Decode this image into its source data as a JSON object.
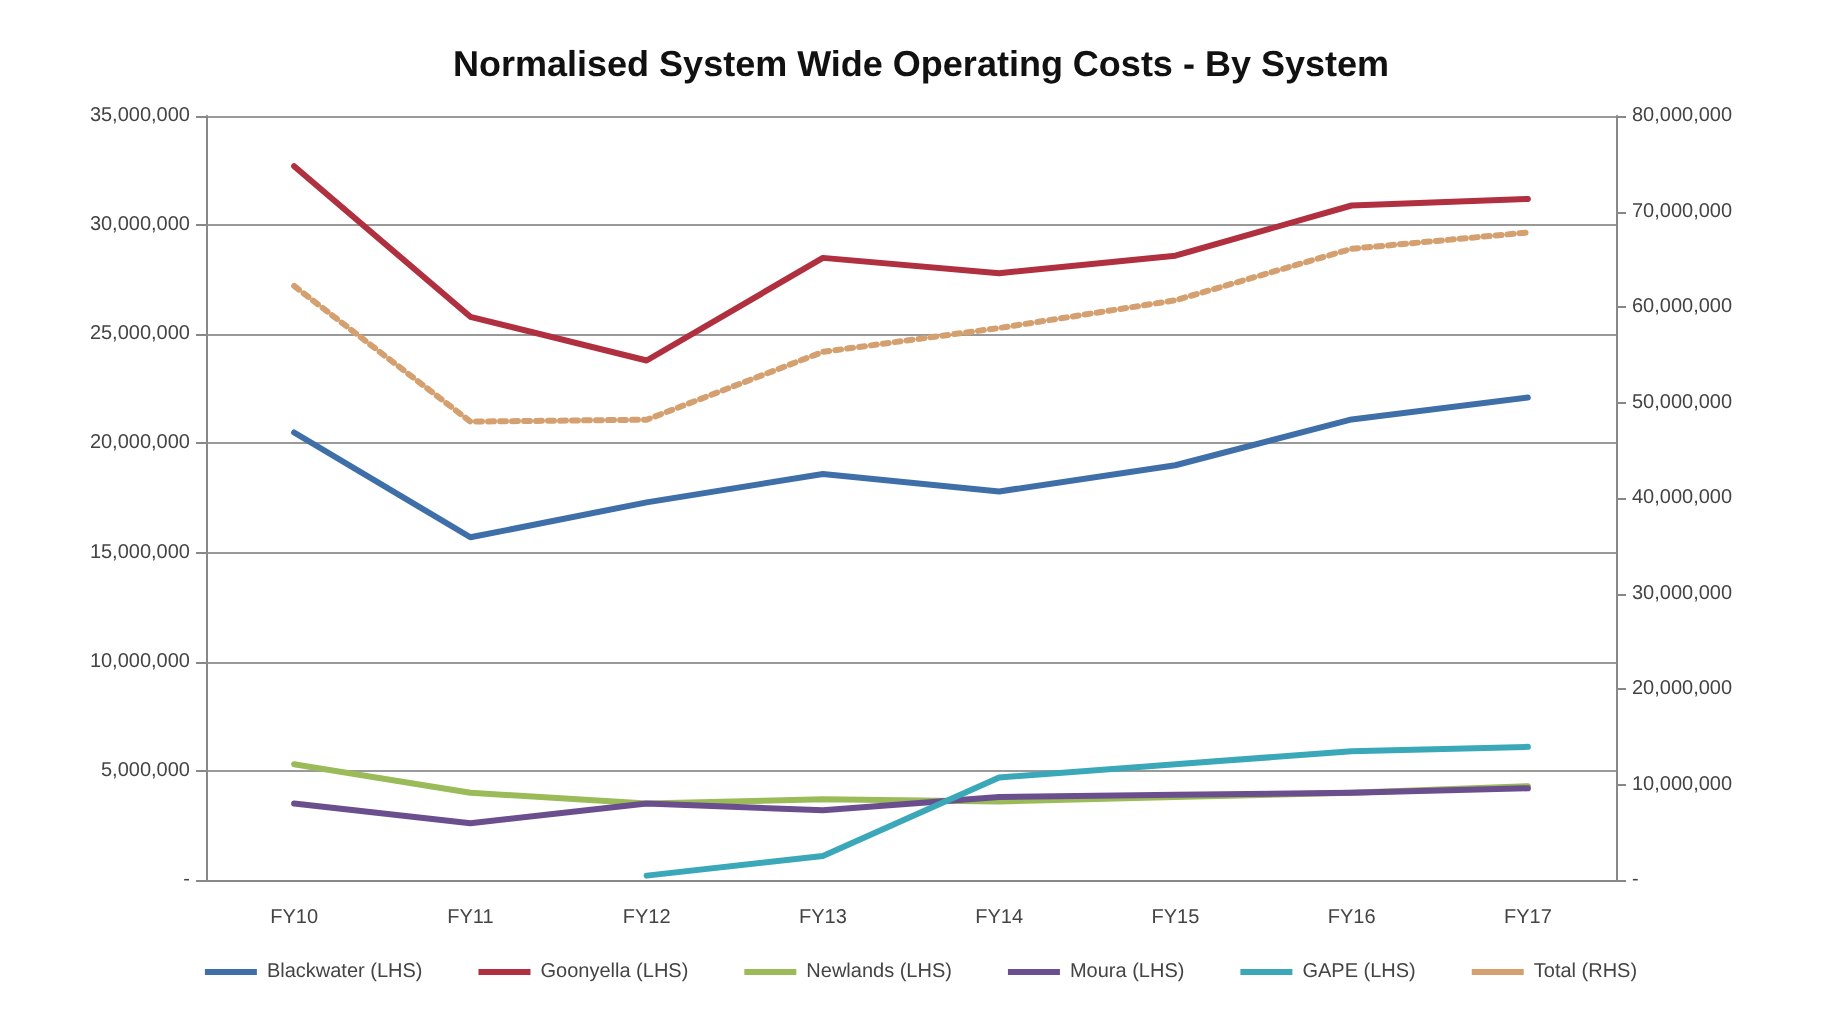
{
  "chart_data": {
    "type": "line",
    "title": "Normalised System Wide Operating Costs - By System",
    "categories": [
      "FY10",
      "FY11",
      "FY12",
      "FY13",
      "FY14",
      "FY15",
      "FY16",
      "FY17"
    ],
    "series": [
      {
        "name": "Blackwater (LHS)",
        "color": "#3f6fa8",
        "values": [
          20500000,
          15700000,
          17300000,
          18600000,
          17800000,
          19000000,
          21100000,
          22100000
        ]
      },
      {
        "name": "Goonyella (LHS)",
        "color": "#b0303f",
        "values": [
          32700000,
          25800000,
          23800000,
          28500000,
          27800000,
          28600000,
          30900000,
          31200000
        ]
      },
      {
        "name": "Newlands (LHS)",
        "color": "#9bbb59",
        "values": [
          5300000,
          4000000,
          3500000,
          3700000,
          3600000,
          3800000,
          4000000,
          4300000
        ]
      },
      {
        "name": "Moura (LHS)",
        "color": "#6b4e8e",
        "values": [
          3500000,
          2600000,
          3500000,
          3200000,
          3800000,
          3900000,
          4000000,
          4200000
        ]
      },
      {
        "name": "GAPE (LHS)",
        "color": "#3aa8b8",
        "values": [
          null,
          null,
          200000,
          1100000,
          4700000,
          5300000,
          5900000,
          6100000
        ]
      },
      {
        "name": "Total (RHS)",
        "color": "#d4a070",
        "axis": "y2",
        "line_style": "dotted",
        "values": [
          62200000,
          48000000,
          48200000,
          55300000,
          57800000,
          60700000,
          66100000,
          67800000
        ]
      }
    ],
    "ylim": [
      0,
      35000000
    ],
    "yticks": [
      {
        "value": 0,
        "label": "-"
      },
      {
        "value": 5000000,
        "label": "5,000,000"
      },
      {
        "value": 10000000,
        "label": "10,000,000"
      },
      {
        "value": 15000000,
        "label": "15,000,000"
      },
      {
        "value": 20000000,
        "label": "20,000,000"
      },
      {
        "value": 25000000,
        "label": "25,000,000"
      },
      {
        "value": 30000000,
        "label": "30,000,000"
      },
      {
        "value": 35000000,
        "label": "35,000,000"
      }
    ],
    "y2lim": [
      0,
      80000000
    ],
    "y2ticks": [
      {
        "value": 0,
        "label": "-"
      },
      {
        "value": 10000000,
        "label": "10,000,000"
      },
      {
        "value": 20000000,
        "label": "20,000,000"
      },
      {
        "value": 30000000,
        "label": "30,000,000"
      },
      {
        "value": 40000000,
        "label": "40,000,000"
      },
      {
        "value": 50000000,
        "label": "50,000,000"
      },
      {
        "value": 60000000,
        "label": "60,000,000"
      },
      {
        "value": 70000000,
        "label": "70,000,000"
      },
      {
        "value": 80000000,
        "label": "80,000,000"
      }
    ],
    "grid": "y",
    "legend": "bottom",
    "marker": "none"
  }
}
